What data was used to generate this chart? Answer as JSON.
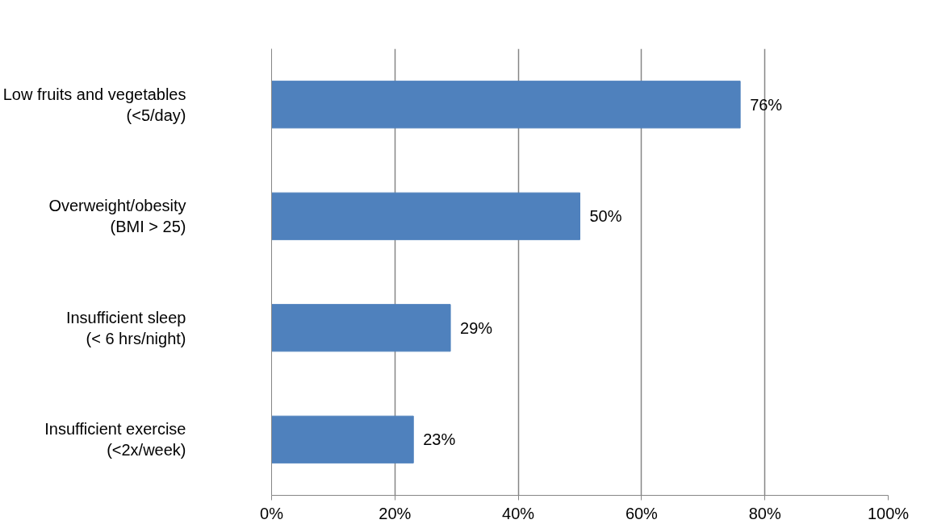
{
  "chart_data": {
    "type": "bar",
    "orientation": "horizontal",
    "categories": [
      "Low fruits and vegetables\n(<5/day)",
      "Overweight/obesity\n(BMI > 25)",
      "Insufficient sleep\n(< 6 hrs/night)",
      "Insufficient exercise\n(<2x/week)"
    ],
    "values": [
      76,
      50,
      29,
      23
    ],
    "value_labels": [
      "76%",
      "50%",
      "29%",
      "23%"
    ],
    "color": "#4f81bd",
    "xlim": [
      0,
      100
    ],
    "xticks": [
      {
        "value": 0,
        "label": "0%"
      },
      {
        "value": 20,
        "label": "20%"
      },
      {
        "value": 40,
        "label": "40%"
      },
      {
        "value": 60,
        "label": "60%"
      },
      {
        "value": 80,
        "label": "80%"
      },
      {
        "value": 100,
        "label": "100%"
      }
    ],
    "grid": "x"
  }
}
